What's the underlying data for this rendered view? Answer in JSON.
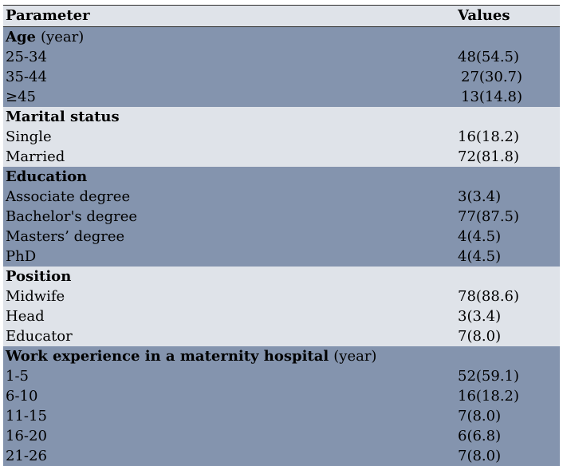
{
  "header": {
    "parameter": "Parameter",
    "values": "Values"
  },
  "groups": [
    {
      "title": "Age",
      "unit": "(year)",
      "rows": [
        {
          "label": "25-34",
          "value": "48(54.5)"
        },
        {
          "label": "35-44",
          "value": "27(30.7)"
        },
        {
          "label": "≥45",
          "value": "13(14.8)"
        }
      ]
    },
    {
      "title": "Marital status",
      "unit": "",
      "rows": [
        {
          "label": "Single",
          "value": "16(18.2)"
        },
        {
          "label": "Married",
          "value": "72(81.8)"
        }
      ]
    },
    {
      "title": "Education",
      "unit": "",
      "rows": [
        {
          "label": "Associate degree",
          "value": "3(3.4)"
        },
        {
          "label": "Bachelor's degree",
          "value": "77(87.5)"
        },
        {
          "label": "Masters’ degree",
          "value": "4(4.5)"
        },
        {
          "label": "PhD",
          "value": "4(4.5)"
        }
      ]
    },
    {
      "title": "Position",
      "unit": "",
      "rows": [
        {
          "label": "Midwife",
          "value": "78(88.6)"
        },
        {
          "label": "Head",
          "value": "3(3.4)"
        },
        {
          "label": "Educator",
          "value": "7(8.0)"
        }
      ]
    },
    {
      "title": "Work experience in a maternity hospital",
      "unit": "(year)",
      "rows": [
        {
          "label": "1-5",
          "value": "52(59.1)"
        },
        {
          "label": "6-10",
          "value": "16(18.2)"
        },
        {
          "label": "11-15",
          "value": "7(8.0)"
        },
        {
          "label": "16-20",
          "value": "6(6.8)"
        },
        {
          "label": "21-26",
          "value": "7(8.0)"
        }
      ]
    }
  ]
}
